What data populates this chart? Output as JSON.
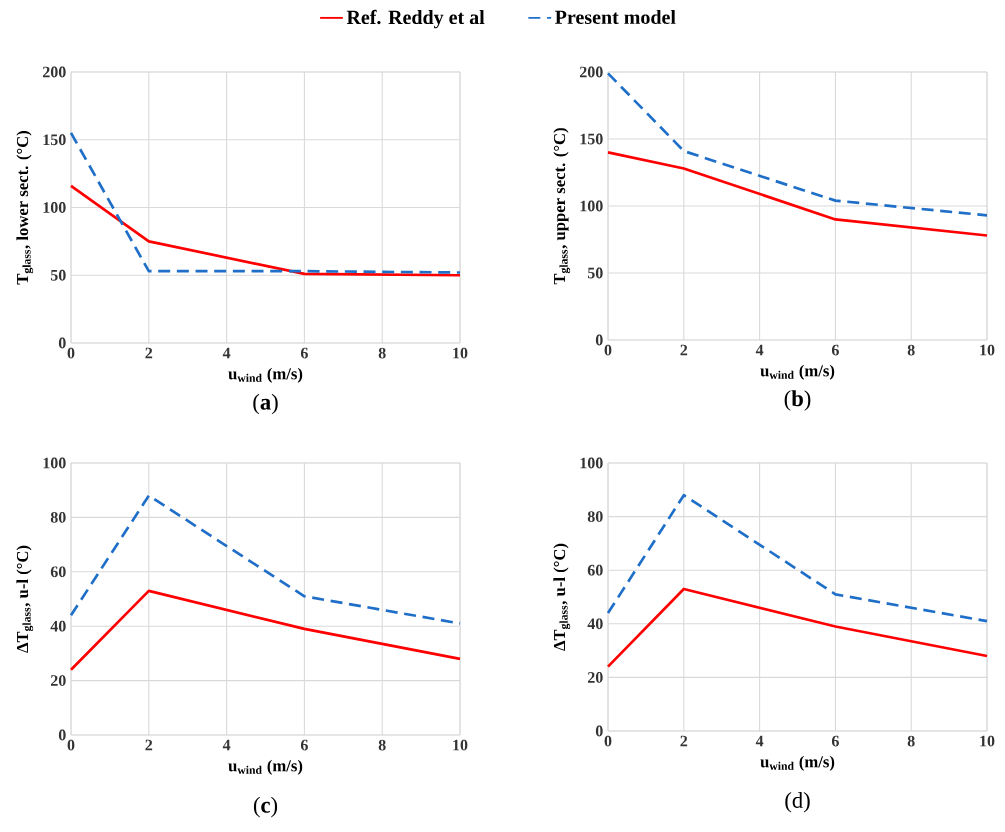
{
  "chart_data": [
    {
      "type": "line",
      "xlabel": "u$_{wind}$ (m/s)",
      "ylabel": "T$_{glass}$, lower sect.  (°C)",
      "annotations": [
        "(**a**)"
      ],
      "xlim": [
        0,
        10
      ],
      "xticks": [
        0,
        2,
        4,
        6,
        8,
        10
      ],
      "ylim": [
        0,
        200
      ],
      "yticks": [
        0,
        50,
        100,
        150,
        200
      ],
      "grid": true,
      "legend": "top",
      "marker": "none",
      "series": [
        {
          "name": "Ref. Reddy et al",
          "color": "#ff0000",
          "line_style": "solid",
          "x": [
            0,
            2,
            6,
            10
          ],
          "values": [
            116,
            75,
            51,
            50
          ]
        },
        {
          "name": "Present model",
          "color": "#1f6fc8",
          "line_style": "dashed",
          "x": [
            0,
            2,
            6,
            10
          ],
          "values": [
            155,
            53,
            53,
            52
          ]
        }
      ]
    },
    {
      "type": "line",
      "xlabel": "u$_{wind}$ (m/s)",
      "ylabel": "T$_{glass}$, upper sect.  (°C)",
      "annotations": [
        "(**b**)"
      ],
      "xlim": [
        0,
        10
      ],
      "xticks": [
        0,
        2,
        4,
        6,
        8,
        10
      ],
      "ylim": [
        0,
        200
      ],
      "yticks": [
        0,
        50,
        100,
        150,
        200
      ],
      "grid": true,
      "marker": "none",
      "series": [
        {
          "color": "#ff0000",
          "line_style": "solid",
          "x": [
            0,
            2,
            6,
            10
          ],
          "values": [
            140,
            128,
            90,
            78
          ]
        },
        {
          "color": "#1f6fc8",
          "line_style": "dashed",
          "x": [
            0,
            2,
            6,
            10
          ],
          "values": [
            199,
            141,
            104,
            93
          ]
        }
      ]
    },
    {
      "type": "line",
      "xlabel": "u$_{wind}$ (m/s)",
      "ylabel": "ΔT$_{glass}$, u-l (°C)",
      "annotations": [
        "(**c**)"
      ],
      "xlim": [
        0,
        10
      ],
      "xticks": [
        0,
        2,
        4,
        6,
        8,
        10
      ],
      "ylim": [
        0,
        100
      ],
      "yticks": [
        0,
        20,
        40,
        60,
        80,
        100
      ],
      "grid": true,
      "marker": "none",
      "series": [
        {
          "color": "#ff0000",
          "line_style": "solid",
          "x": [
            0,
            2,
            6,
            10
          ],
          "values": [
            24,
            53,
            39,
            28
          ]
        },
        {
          "color": "#1f6fc8",
          "line_style": "dashed",
          "x": [
            0,
            2,
            6,
            10
          ],
          "values": [
            44,
            88,
            51,
            41
          ]
        }
      ]
    },
    {
      "type": "line",
      "xlabel": "u$_{wind}$ (m/s)",
      "ylabel": "ΔT$_{glass}$, u-l (°C)",
      "annotations": [
        "(d)"
      ],
      "xlim": [
        0,
        10
      ],
      "xticks": [
        0,
        2,
        4,
        6,
        8,
        10
      ],
      "ylim": [
        0,
        100
      ],
      "yticks": [
        0,
        20,
        40,
        60,
        80,
        100
      ],
      "grid": true,
      "marker": "none",
      "series": [
        {
          "color": "#ff0000",
          "line_style": "solid",
          "x": [
            0,
            2,
            6,
            10
          ],
          "values": [
            24,
            53,
            39,
            28
          ]
        },
        {
          "color": "#1f6fc8",
          "line_style": "dashed",
          "x": [
            0,
            2,
            6,
            10
          ],
          "values": [
            44,
            88,
            51,
            41
          ]
        }
      ]
    }
  ]
}
